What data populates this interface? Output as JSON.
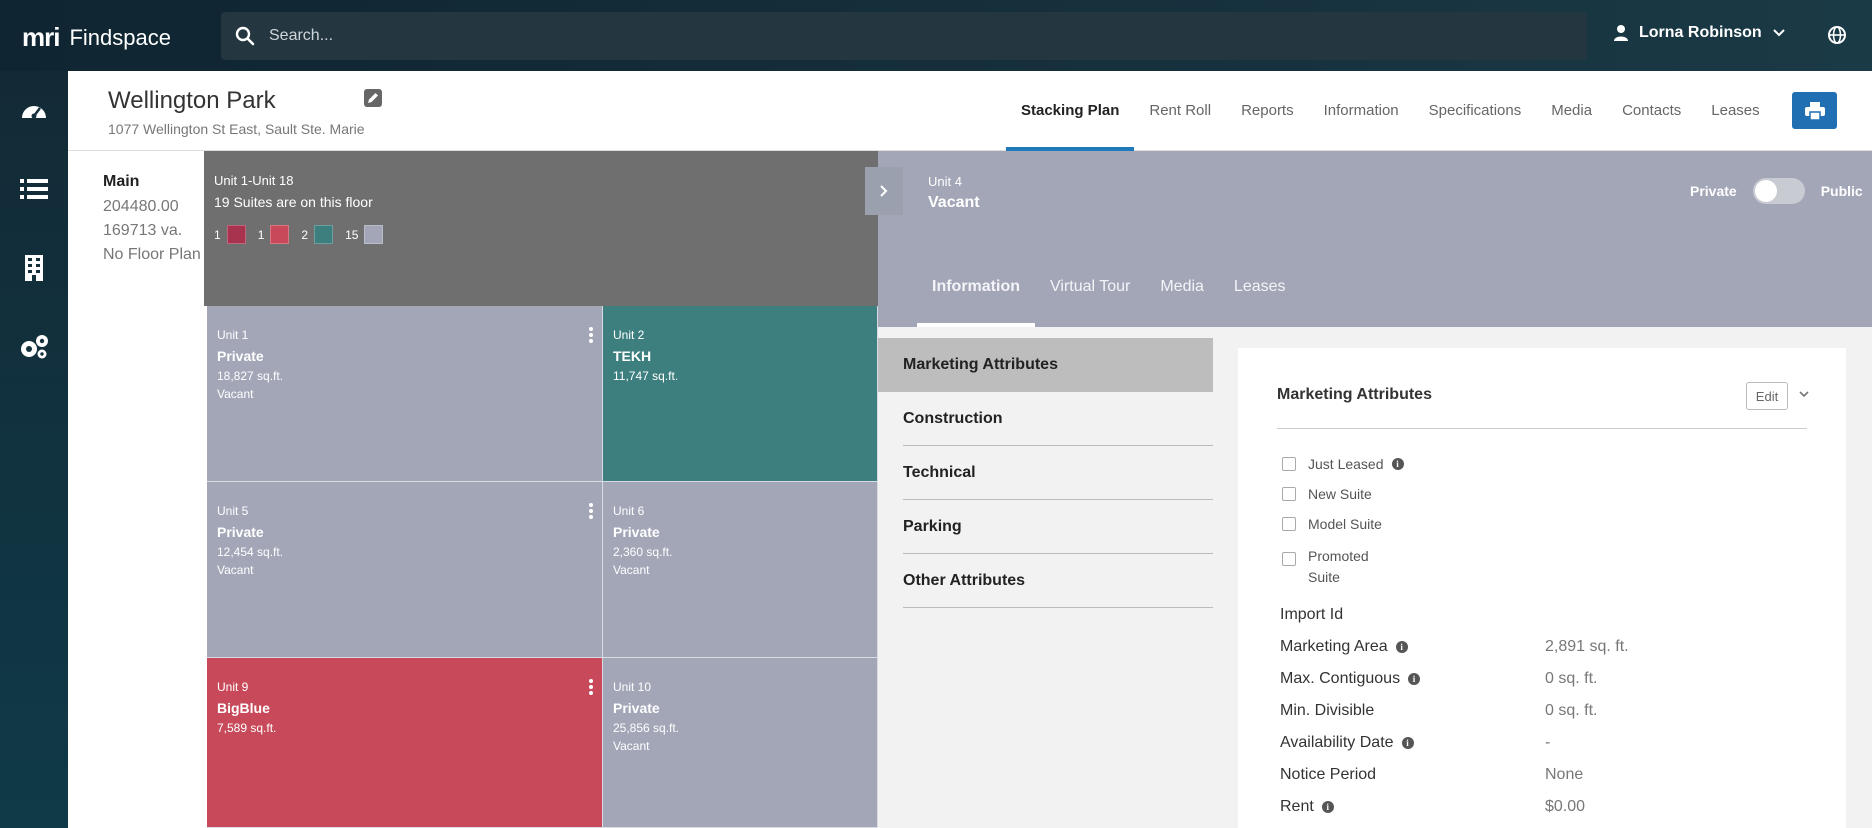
{
  "app": {
    "brand": "mri",
    "name": "Findspace"
  },
  "search": {
    "placeholder": "Search..."
  },
  "user": {
    "name": "Lorna Robinson"
  },
  "property": {
    "title": "Wellington Park",
    "address": "1077 Wellington St East, Sault Ste. Marie"
  },
  "tabs": [
    {
      "label": "Stacking Plan",
      "active": true
    },
    {
      "label": "Rent Roll"
    },
    {
      "label": "Reports"
    },
    {
      "label": "Information"
    },
    {
      "label": "Specifications"
    },
    {
      "label": "Media"
    },
    {
      "label": "Contacts"
    },
    {
      "label": "Leases"
    }
  ],
  "floor": {
    "name": "Main",
    "area": "204480.00",
    "va": "169713 va.",
    "plan": "No Floor Plan"
  },
  "summary": {
    "range": "Unit 1-Unit 18",
    "suites": "19 Suites are on this floor",
    "legend": [
      {
        "count": "1",
        "color": "#a8334f"
      },
      {
        "count": "1",
        "color": "#c84a5a"
      },
      {
        "count": "2",
        "color": "#3d7f7f"
      },
      {
        "count": "15",
        "color": "#a2a6b7"
      }
    ]
  },
  "units": [
    {
      "unit": "Unit 1",
      "tenant": "Private",
      "area": "18,827 sq.ft.",
      "status": "Vacant",
      "color": "#a2a6b7",
      "menu": true
    },
    {
      "unit": "Unit 2",
      "tenant": "TEKH",
      "area": "11,747 sq.ft.",
      "status": "",
      "color": "#3d7f7f",
      "menu": false
    },
    {
      "unit": "Unit 5",
      "tenant": "Private",
      "area": "12,454 sq.ft.",
      "status": "Vacant",
      "color": "#a2a6b7",
      "menu": true
    },
    {
      "unit": "Unit 6",
      "tenant": "Private",
      "area": "2,360 sq.ft.",
      "status": "Vacant",
      "color": "#a2a6b7",
      "menu": false
    },
    {
      "unit": "Unit 9",
      "tenant": "BigBlue",
      "area": "7,589 sq.ft.",
      "status": "",
      "color": "#c84a5a",
      "menu": true
    },
    {
      "unit": "Unit 10",
      "tenant": "Private",
      "area": "25,856 sq.ft.",
      "status": "Vacant",
      "color": "#a2a6b7",
      "menu": false
    }
  ],
  "detail": {
    "unit": "Unit 4",
    "status": "Vacant",
    "toggle_left": "Private",
    "toggle_right": "Public",
    "tabs": [
      {
        "label": "Information",
        "active": true
      },
      {
        "label": "Virtual Tour"
      },
      {
        "label": "Media"
      },
      {
        "label": "Leases"
      }
    ],
    "categories": [
      {
        "label": "Marketing Attributes",
        "active": true
      },
      {
        "label": "Construction"
      },
      {
        "label": "Technical"
      },
      {
        "label": "Parking"
      },
      {
        "label": "Other Attributes"
      }
    ]
  },
  "panel": {
    "title": "Marketing Attributes",
    "edit_label": "Edit",
    "checkboxes": [
      {
        "label": "Just Leased",
        "info": true
      },
      {
        "label": "New Suite"
      },
      {
        "label": "Model Suite"
      },
      {
        "label": "Promoted Suite"
      }
    ],
    "attributes": [
      {
        "label": "Import Id",
        "value": "",
        "info": false
      },
      {
        "label": "Marketing Area",
        "value": "2,891 sq. ft.",
        "info": true
      },
      {
        "label": "Max. Contiguous",
        "value": "0 sq. ft.",
        "info": true
      },
      {
        "label": "Min. Divisible",
        "value": "0 sq. ft.",
        "info": false
      },
      {
        "label": "Availability Date",
        "value": "-",
        "info": true
      },
      {
        "label": "Notice Period",
        "value": "None",
        "info": false
      },
      {
        "label": "Rent",
        "value": "$0.00",
        "info": true
      }
    ]
  }
}
